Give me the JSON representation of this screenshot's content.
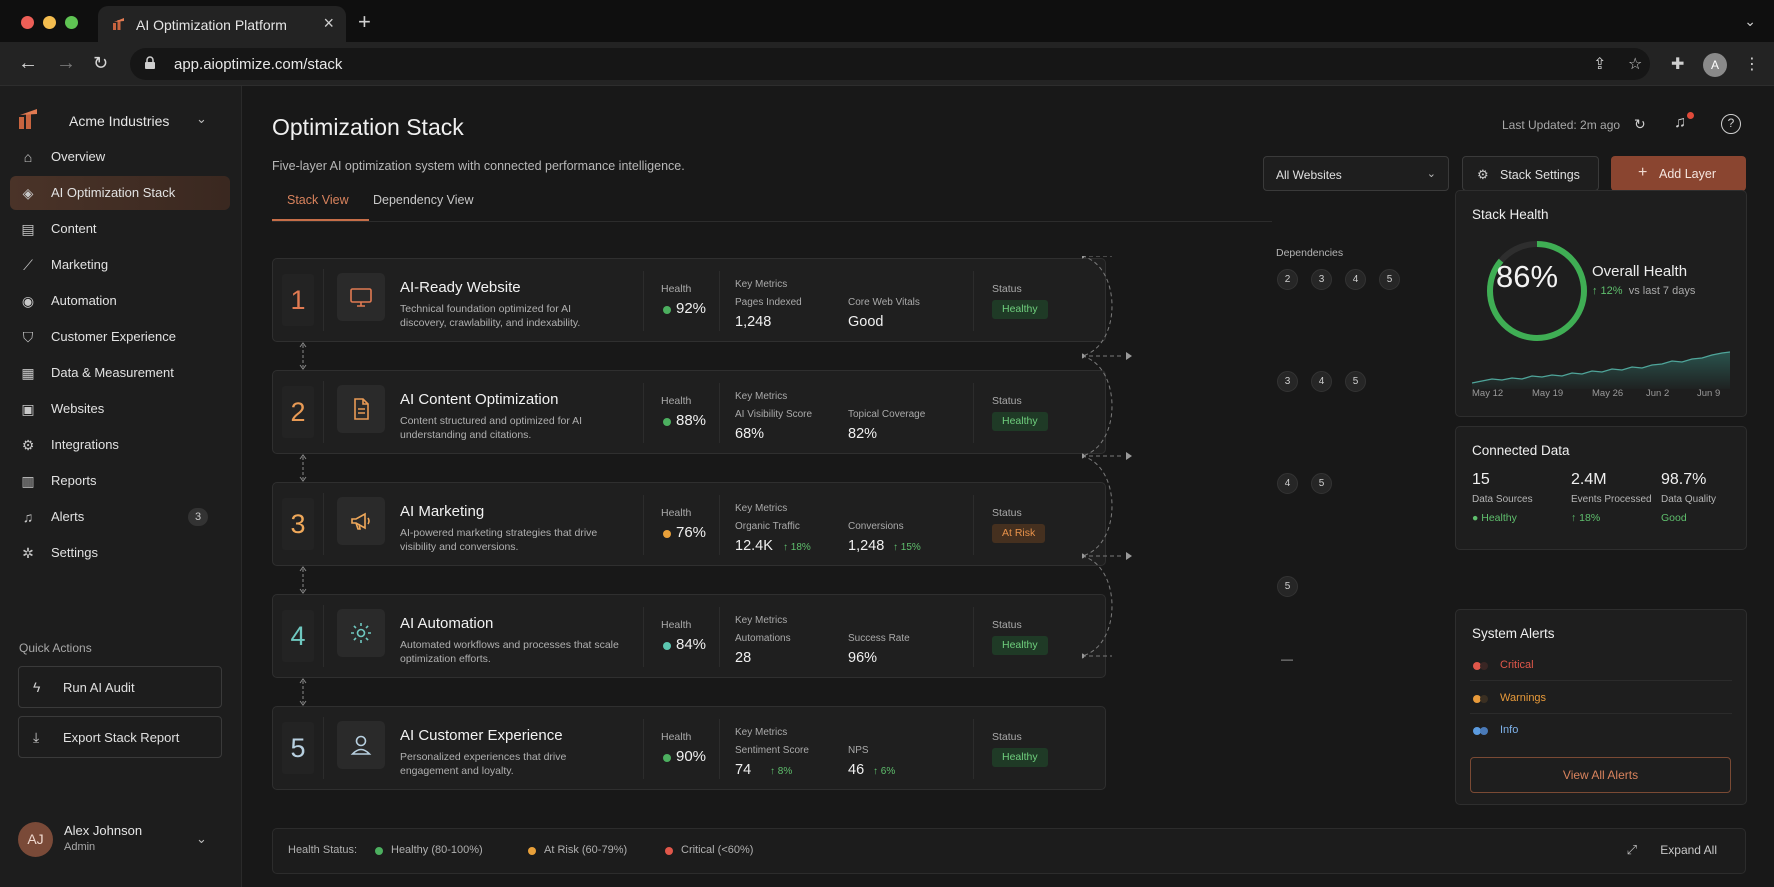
{
  "browser": {
    "tab_title": "AI Optimization Platform",
    "url": "app.aioptimize.com/stack",
    "profile_initial": "A"
  },
  "sidebar": {
    "org_name": "Acme Industries",
    "items": [
      {
        "label": "Overview",
        "icon": "home-icon"
      },
      {
        "label": "AI Optimization Stack",
        "icon": "stack-icon"
      },
      {
        "label": "Content",
        "icon": "document-icon"
      },
      {
        "label": "Marketing",
        "icon": "chart-icon"
      },
      {
        "label": "Automation",
        "icon": "automation-icon"
      },
      {
        "label": "Customer Experience",
        "icon": "shield-icon"
      },
      {
        "label": "Data & Measurement",
        "icon": "database-icon"
      },
      {
        "label": "Websites",
        "icon": "browser-icon"
      },
      {
        "label": "Integrations",
        "icon": "gear-icon"
      },
      {
        "label": "Reports",
        "icon": "report-icon"
      },
      {
        "label": "Alerts",
        "icon": "bell-icon",
        "badge": "3"
      },
      {
        "label": "Settings",
        "icon": "settings-icon"
      }
    ],
    "quick_actions_label": "Quick Actions",
    "quick_actions": [
      {
        "label": "Run AI Audit",
        "icon": "bolt-icon"
      },
      {
        "label": "Export Stack Report",
        "icon": "download-icon"
      }
    ],
    "user": {
      "initials": "AJ",
      "name": "Alex Johnson",
      "role": "Admin"
    }
  },
  "header": {
    "title": "Optimization Stack",
    "subtitle": "Five-layer AI optimization system with connected performance intelligence.",
    "last_updated": "Last Updated: 2m ago",
    "website_select": "All Websites",
    "stack_settings": "Stack Settings",
    "add_layer": "Add Layer"
  },
  "tabs": [
    {
      "label": "Stack View",
      "active": true
    },
    {
      "label": "Dependency View",
      "active": false
    }
  ],
  "layers": [
    {
      "num": "1",
      "name": "AI-Ready Website",
      "desc": "Technical foundation optimized for AI discovery, crawlability, and indexability.",
      "health_label": "Health",
      "health": "92%",
      "health_color": "#4caf5f",
      "km_label": "Key Metrics",
      "m1_label": "Pages Indexed",
      "m1_value": "1,248",
      "m1_delta": "",
      "m2_label": "Core Web Vitals",
      "m2_value": "Good",
      "m2_delta": "",
      "status_label": "Status",
      "status": "Healthy",
      "num_color": "#e07a52"
    },
    {
      "num": "2",
      "name": "AI Content Optimization",
      "desc": "Content structured and optimized for AI understanding and citations.",
      "health_label": "Health",
      "health": "88%",
      "health_color": "#4caf5f",
      "km_label": "Key Metrics",
      "m1_label": "AI Visibility Score",
      "m1_value": "68%",
      "m1_delta": "",
      "m2_label": "Topical Coverage",
      "m2_value": "82%",
      "m2_delta": "",
      "status_label": "Status",
      "status": "Healthy",
      "num_color": "#e89a55"
    },
    {
      "num": "3",
      "name": "AI Marketing",
      "desc": "AI-powered marketing strategies that drive visibility and conversions.",
      "health_label": "Health",
      "health": "76%",
      "health_color": "#e8a03a",
      "km_label": "Key Metrics",
      "m1_label": "Organic Traffic",
      "m1_value": "12.4K",
      "m1_delta": "↑ 18%",
      "m2_label": "Conversions",
      "m2_value": "1,248",
      "m2_delta": "↑ 15%",
      "status_label": "Status",
      "status": "At Risk",
      "num_color": "#efa85a"
    },
    {
      "num": "4",
      "name": "AI Automation",
      "desc": "Automated workflows and processes that scale optimization efforts.",
      "health_label": "Health",
      "health": "84%",
      "health_color": "#5cc6b0",
      "km_label": "Key Metrics",
      "m1_label": "Automations",
      "m1_value": "28",
      "m1_delta": "",
      "m2_label": "Success Rate",
      "m2_value": "96%",
      "m2_delta": "",
      "status_label": "Status",
      "status": "Healthy",
      "num_color": "#6fc8c0"
    },
    {
      "num": "5",
      "name": "AI Customer Experience",
      "desc": "Personalized experiences that drive engagement and loyalty.",
      "health_label": "Health",
      "health": "90%",
      "health_color": "#4caf5f",
      "km_label": "Key Metrics",
      "m1_label": "Sentiment Score",
      "m1_value": "74",
      "m1_delta": "↑ 8%",
      "m2_label": "NPS",
      "m2_value": "46",
      "m2_delta": "↑ 6%",
      "status_label": "Status",
      "status": "Healthy",
      "num_color": "#b8d0e0"
    }
  ],
  "dependencies": {
    "title": "Dependencies",
    "rows": [
      [
        "2",
        "3",
        "4",
        "5"
      ],
      [
        "3",
        "4",
        "5"
      ],
      [
        "4",
        "5"
      ],
      [
        "5"
      ],
      []
    ],
    "empty": "—"
  },
  "stack_health": {
    "title": "Stack Health",
    "percent": 86,
    "percent_label": "86%",
    "overall_label": "Overall Health",
    "delta": "↑ 12%",
    "delta_suffix": "vs last 7 days",
    "axis": [
      "May 12",
      "May 19",
      "May 26",
      "Jun 2",
      "Jun 9"
    ],
    "ring_color": "#3fae54"
  },
  "connected_data": {
    "title": "Connected Data",
    "stats": [
      {
        "value": "15",
        "label": "Data Sources",
        "status": "● Healthy"
      },
      {
        "value": "2.4M",
        "label": "Events Processed",
        "status": "↑ 18%"
      },
      {
        "value": "98.7%",
        "label": "Data Quality",
        "status": "Good"
      }
    ]
  },
  "system_alerts": {
    "title": "System Alerts",
    "rows": [
      {
        "label": "Critical",
        "color": "#e0574a"
      },
      {
        "label": "Warnings",
        "color": "#e89a3a"
      },
      {
        "label": "Info",
        "color": "#5b9be0"
      }
    ],
    "view_all": "View All Alerts"
  },
  "footer": {
    "label": "Health Status:",
    "legend": [
      {
        "label": "Healthy (80-100%)",
        "color": "#4caf5f"
      },
      {
        "label": "At Risk (60-79%)",
        "color": "#e8a03a"
      },
      {
        "label": "Critical (<60%)",
        "color": "#e0574a"
      }
    ],
    "expand_all": "Expand All"
  }
}
